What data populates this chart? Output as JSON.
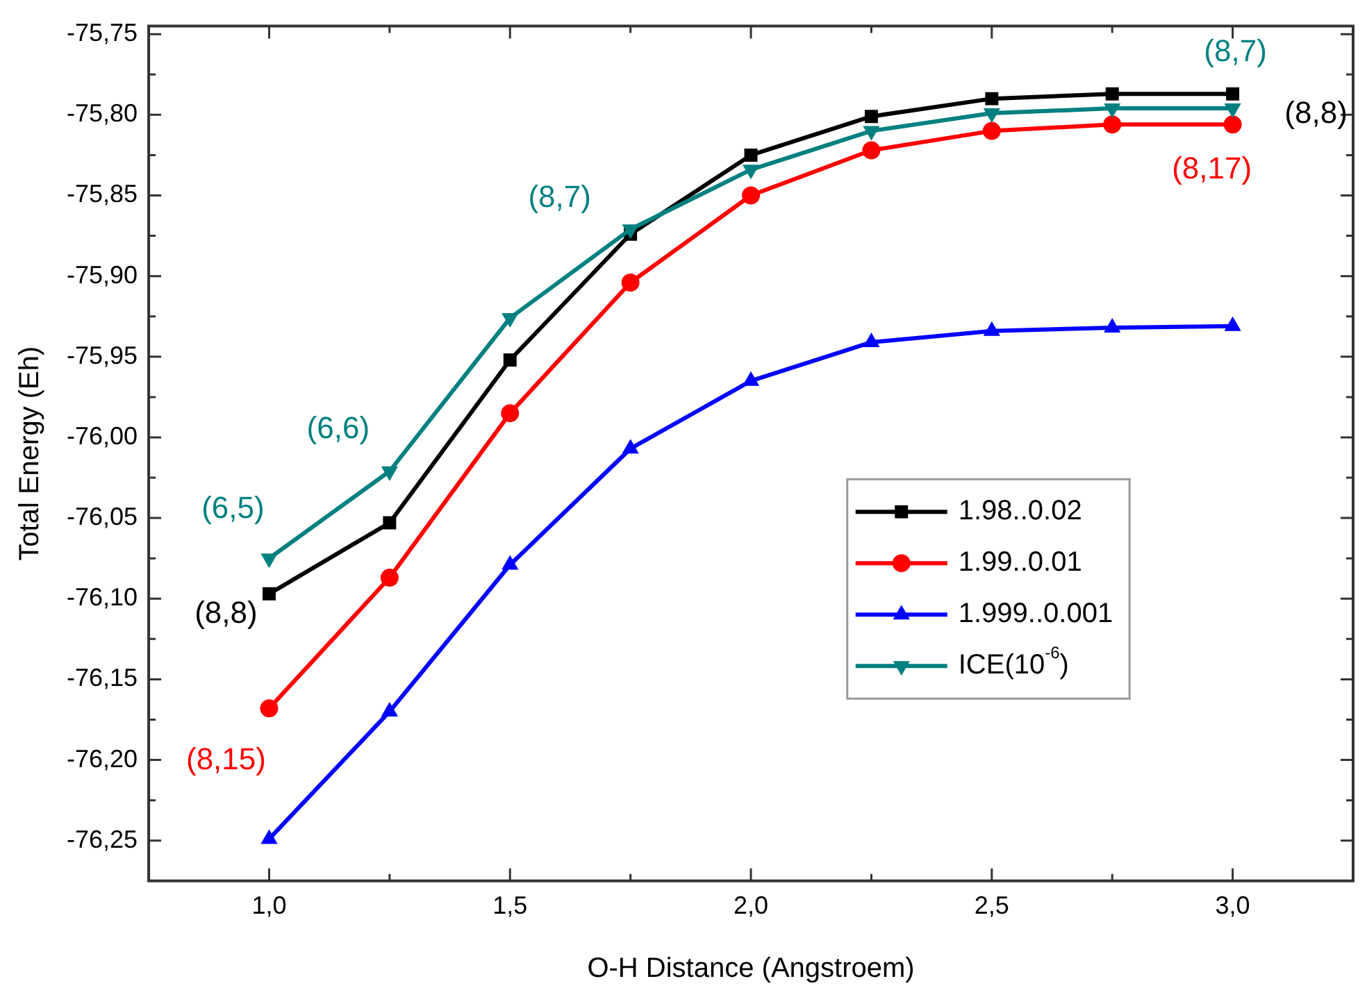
{
  "chart_data": {
    "type": "line",
    "xlabel": "O-H Distance (Angstroem)",
    "ylabel": "Total Energy (Eh)",
    "x": [
      1.0,
      1.25,
      1.5,
      1.75,
      2.0,
      2.25,
      2.5,
      2.75,
      3.0
    ],
    "series": [
      {
        "name": "1.98..0.02",
        "color": "#000000",
        "marker": "square",
        "values": [
          -76.097,
          -76.053,
          -75.952,
          -75.874,
          -75.825,
          -75.801,
          -75.79,
          -75.787,
          -75.787
        ]
      },
      {
        "name": "1.99..0.01",
        "color": "#ff0000",
        "marker": "circle",
        "values": [
          -76.168,
          -76.087,
          -75.985,
          -75.904,
          -75.85,
          -75.822,
          -75.81,
          -75.806,
          -75.806
        ]
      },
      {
        "name": "1.999..0.001",
        "color": "#0000ff",
        "marker": "triangle",
        "values": [
          -76.249,
          -76.17,
          -76.079,
          -76.007,
          -75.965,
          -75.941,
          -75.934,
          -75.932,
          -75.931
        ]
      },
      {
        "name": "ICE(10$^{-6}$)",
        "color": "#008080",
        "marker": "triangle-down",
        "values": [
          -76.075,
          -76.021,
          -75.926,
          -75.871,
          -75.834,
          -75.81,
          -75.799,
          -75.796,
          -75.796
        ]
      }
    ],
    "xlim": [
      0.75,
      3.25
    ],
    "xticks": [
      {
        "value": 0.75,
        "label": null
      },
      {
        "value": 1.0,
        "label": "1,0"
      },
      {
        "value": 1.25,
        "label": null
      },
      {
        "value": 1.5,
        "label": "1,5"
      },
      {
        "value": 1.75,
        "label": null
      },
      {
        "value": 2.0,
        "label": "2,0"
      },
      {
        "value": 2.25,
        "label": null
      },
      {
        "value": 2.5,
        "label": "2,5"
      },
      {
        "value": 2.75,
        "label": null
      },
      {
        "value": 3.0,
        "label": "3,0"
      },
      {
        "value": 3.25,
        "label": null
      }
    ],
    "ylim": [
      -76.275,
      -75.745
    ],
    "yticks": [
      {
        "value": -76.25,
        "label": "-76,25"
      },
      {
        "value": -76.225,
        "label": null
      },
      {
        "value": -76.2,
        "label": "-76,20"
      },
      {
        "value": -76.175,
        "label": null
      },
      {
        "value": -76.15,
        "label": "-76,15"
      },
      {
        "value": -76.125,
        "label": null
      },
      {
        "value": -76.1,
        "label": "-76,10"
      },
      {
        "value": -76.075,
        "label": null
      },
      {
        "value": -76.05,
        "label": "-76,05"
      },
      {
        "value": -76.025,
        "label": null
      },
      {
        "value": -76.0,
        "label": "-76,00"
      },
      {
        "value": -75.975,
        "label": null
      },
      {
        "value": -75.95,
        "label": "-75,95"
      },
      {
        "value": -75.925,
        "label": null
      },
      {
        "value": -75.9,
        "label": "-75,90"
      },
      {
        "value": -75.875,
        "label": null
      },
      {
        "value": -75.85,
        "label": "-75,85"
      },
      {
        "value": -75.825,
        "label": null
      },
      {
        "value": -75.8,
        "label": "-75,80"
      },
      {
        "value": -75.775,
        "label": null
      },
      {
        "value": -75.75,
        "label": "-75,75"
      }
    ],
    "grid": false,
    "legend": "center right",
    "line_style": "solid",
    "annotations": [
      {
        "text": "(6,5)",
        "x": 1.0,
        "y": -76.075
      },
      {
        "text": "(8,8)",
        "x": 1.0,
        "y": -76.097
      },
      {
        "text": "(8,15)",
        "x": 1.0,
        "y": -76.168
      },
      {
        "text": "(6,6)",
        "x": 1.25,
        "y": -76.021
      },
      {
        "text": "(8,7)",
        "x": 1.75,
        "y": -75.871
      },
      {
        "text": "(8,7)",
        "x": 3.0,
        "y": -75.796
      },
      {
        "text": "(8,8)",
        "x": 3.0,
        "y": -75.787
      },
      {
        "text": "(8,17)",
        "x": 3.0,
        "y": -75.806
      }
    ]
  }
}
